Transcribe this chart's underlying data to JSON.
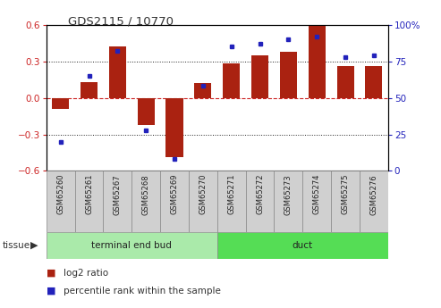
{
  "title": "GDS2115 / 10770",
  "samples": [
    "GSM65260",
    "GSM65261",
    "GSM65267",
    "GSM65268",
    "GSM65269",
    "GSM65270",
    "GSM65271",
    "GSM65272",
    "GSM65273",
    "GSM65274",
    "GSM65275",
    "GSM65276"
  ],
  "log2_ratio": [
    -0.09,
    0.13,
    0.42,
    -0.22,
    -0.49,
    0.12,
    0.28,
    0.35,
    0.38,
    0.61,
    0.26,
    0.26
  ],
  "percentile_rank": [
    20,
    65,
    82,
    28,
    8,
    58,
    85,
    87,
    90,
    92,
    78,
    79
  ],
  "groups": [
    {
      "label": "terminal end bud",
      "start": 0,
      "end": 6,
      "color": "#aaeaaa"
    },
    {
      "label": "duct",
      "start": 6,
      "end": 12,
      "color": "#55dd55"
    }
  ],
  "ylim_left": [
    -0.6,
    0.6
  ],
  "ylim_right": [
    0,
    100
  ],
  "bar_color": "#aa2211",
  "dot_color": "#2222bb",
  "background_color": "#ffffff",
  "tissue_label": "tissue",
  "legend_log2": "log2 ratio",
  "legend_pct": "percentile rank within the sample",
  "zero_line_color": "#cc2222",
  "dotted_line_color": "#222222",
  "left_yticks": [
    -0.6,
    -0.3,
    0.0,
    0.3,
    0.6
  ],
  "right_yticks": [
    0,
    25,
    50,
    75,
    100
  ],
  "left_tick_color": "#cc2222",
  "right_tick_color": "#2222bb",
  "sample_box_color": "#d0d0d0",
  "sample_box_edge": "#888888"
}
